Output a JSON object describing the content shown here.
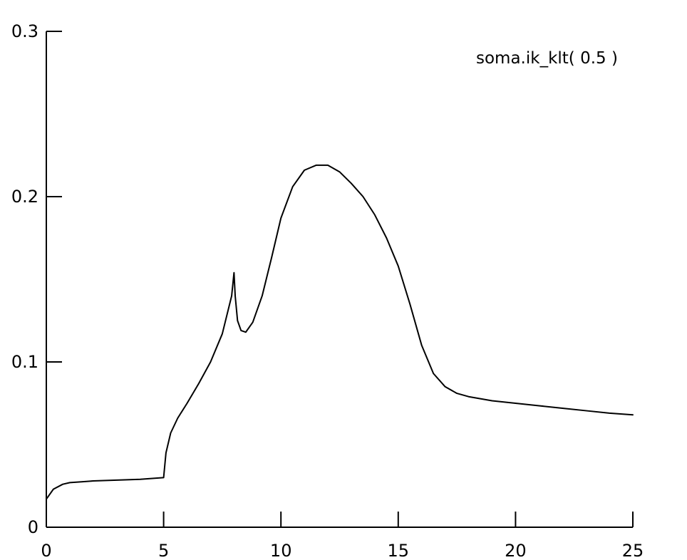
{
  "chart_data": {
    "type": "line",
    "title": "",
    "xlabel": "",
    "ylabel": "",
    "xlim": [
      0,
      25
    ],
    "ylim": [
      0,
      0.3
    ],
    "x_ticks": [
      0,
      5,
      10,
      15,
      20,
      25
    ],
    "x_tick_labels": [
      "0",
      "5",
      "10",
      "15",
      "20",
      "25"
    ],
    "y_ticks": [
      0,
      0.1,
      0.2,
      0.3
    ],
    "y_tick_labels": [
      "0",
      "0.1",
      "0.2",
      "0.3"
    ],
    "grid": false,
    "legend_position": "top-right",
    "series": [
      {
        "name": "soma.ik_klt( 0.5 )",
        "color": "#000000",
        "x": [
          0,
          0.3,
          0.7,
          1,
          1.5,
          2,
          3,
          4,
          4.99,
          5,
          5.1,
          5.3,
          5.6,
          6,
          6.5,
          7,
          7.5,
          7.9,
          8,
          8.05,
          8.15,
          8.3,
          8.5,
          8.8,
          9.2,
          9.6,
          10,
          10.5,
          11,
          11.5,
          12,
          12.5,
          13,
          13.5,
          14,
          14.5,
          15,
          15.5,
          16,
          16.5,
          17,
          17.5,
          18,
          19,
          20,
          21,
          22,
          23,
          24,
          25
        ],
        "y": [
          0.017,
          0.023,
          0.026,
          0.027,
          0.0275,
          0.028,
          0.0285,
          0.029,
          0.03,
          0.03,
          0.045,
          0.057,
          0.066,
          0.075,
          0.087,
          0.1,
          0.117,
          0.14,
          0.154,
          0.14,
          0.125,
          0.119,
          0.118,
          0.124,
          0.14,
          0.163,
          0.187,
          0.206,
          0.216,
          0.219,
          0.219,
          0.215,
          0.208,
          0.2,
          0.189,
          0.175,
          0.158,
          0.135,
          0.11,
          0.093,
          0.085,
          0.081,
          0.079,
          0.0765,
          0.075,
          0.0735,
          0.072,
          0.0705,
          0.069,
          0.068
        ]
      }
    ]
  }
}
